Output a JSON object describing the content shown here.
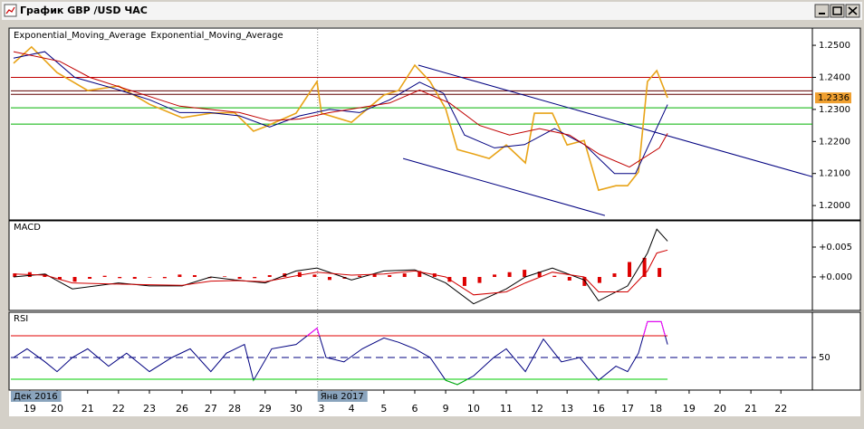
{
  "window_title": "График GBP /USD  ЧАС",
  "x_axis": {
    "xlim": [
      -0.63,
      26.1
    ],
    "xticks": [
      {
        "value": 0,
        "label": "19"
      },
      {
        "value": 0.91,
        "label": "20"
      },
      {
        "value": 1.93,
        "label": "21"
      },
      {
        "value": 2.96,
        "label": "22"
      },
      {
        "value": 3.99,
        "label": "23"
      },
      {
        "value": 5.08,
        "label": "26"
      },
      {
        "value": 6.04,
        "label": "27"
      },
      {
        "value": 6.83,
        "label": "28"
      },
      {
        "value": 7.85,
        "label": "29"
      },
      {
        "value": 8.88,
        "label": "30"
      },
      {
        "value": 9.73,
        "label": "3"
      },
      {
        "value": 10.73,
        "label": "4"
      },
      {
        "value": 11.81,
        "label": "5"
      },
      {
        "value": 12.84,
        "label": "6"
      },
      {
        "value": 13.87,
        "label": "9"
      },
      {
        "value": 14.8,
        "label": "10"
      },
      {
        "value": 15.89,
        "label": "11"
      },
      {
        "value": 16.92,
        "label": "12"
      },
      {
        "value": 17.92,
        "label": "13"
      },
      {
        "value": 18.97,
        "label": "16"
      },
      {
        "value": 19.94,
        "label": "17"
      },
      {
        "value": 20.88,
        "label": "18"
      },
      {
        "value": 21.99,
        "label": "19"
      },
      {
        "value": 23.02,
        "label": "20"
      },
      {
        "value": 24.05,
        "label": "21"
      },
      {
        "value": 25.05,
        "label": "22"
      }
    ],
    "period_labels": [
      {
        "value": -0.63,
        "label": "Дек 2016"
      },
      {
        "value": 9.6,
        "label": "Янв 2017"
      }
    ]
  },
  "chart_data": [
    {
      "type": "line",
      "legend": "top-left",
      "ylim": [
        1.1958,
        1.2551
      ],
      "yticks": [
        {
          "value": 1.2,
          "label": "1.2000"
        },
        {
          "value": 1.21,
          "label": "1.2100"
        },
        {
          "value": 1.22,
          "label": "1.2200"
        },
        {
          "value": 1.23,
          "label": "1.2300"
        },
        {
          "value": 1.24,
          "label": "1.2400"
        },
        {
          "value": 1.25,
          "label": "1.2500"
        }
      ],
      "series": [
        {
          "color": "#e8a317",
          "x": [
            -0.54,
            0.06,
            0.91,
            1.42,
            1.93,
            2.96,
            3.99,
            5.08,
            6.04,
            6.83,
            7.46,
            7.85,
            8.88,
            9.58,
            9.73,
            10.73,
            11.81,
            12.3,
            12.84,
            13.35,
            13.87,
            14.26,
            14.8,
            15.32,
            15.89,
            16.53,
            16.83,
            17.43,
            17.92,
            18.49,
            18.97,
            19.55,
            19.94,
            20.3,
            20.6,
            20.91,
            21.27
          ],
          "values": [
            1.2444,
            1.2495,
            1.2415,
            1.2387,
            1.2359,
            1.2373,
            1.2316,
            1.2274,
            1.2288,
            1.229,
            1.2232,
            1.2246,
            1.2288,
            1.2387,
            1.2288,
            1.226,
            1.2345,
            1.2359,
            1.2438,
            1.2387,
            1.2302,
            1.2175,
            1.2161,
            1.2147,
            1.2189,
            1.2133,
            1.2288,
            1.2288,
            1.2189,
            1.2203,
            1.2048,
            1.2062,
            1.2062,
            1.2105,
            1.2387,
            1.2421,
            1.2336
          ]
        },
        {
          "name": "Exponential_Moving_Average",
          "color": "#000080",
          "x": [
            -0.54,
            0.5,
            1.5,
            3,
            4,
            5,
            6,
            7,
            8,
            9,
            10,
            11,
            12,
            13,
            13.8,
            14.5,
            15.5,
            16.5,
            17.5,
            18.5,
            19.5,
            20.2,
            21,
            21.27
          ],
          "values": [
            1.246,
            1.248,
            1.24,
            1.236,
            1.233,
            1.229,
            1.229,
            1.228,
            1.2245,
            1.228,
            1.23,
            1.229,
            1.233,
            1.2385,
            1.235,
            1.222,
            1.218,
            1.219,
            1.224,
            1.219,
            1.21,
            1.21,
            1.226,
            1.2315
          ]
        },
        {
          "name": "Exponential_Moving_Average",
          "color": "#c00000",
          "x": [
            -0.54,
            1,
            2,
            3,
            4,
            5,
            7,
            8,
            9,
            10,
            12,
            13,
            14,
            15,
            16,
            17,
            18,
            19,
            20,
            21,
            21.27
          ],
          "values": [
            1.248,
            1.245,
            1.24,
            1.237,
            1.234,
            1.231,
            1.229,
            1.2265,
            1.227,
            1.229,
            1.232,
            1.236,
            1.232,
            1.225,
            1.222,
            1.224,
            1.222,
            1.216,
            1.212,
            1.218,
            1.2225
          ]
        }
      ],
      "hlines": [
        {
          "value": 1.24,
          "color": "#c00000"
        },
        {
          "value": 1.2358,
          "color": "#600000"
        },
        {
          "value": 1.2347,
          "color": "#600000"
        },
        {
          "value": 1.2305,
          "color": "#00b000"
        },
        {
          "value": 1.2254,
          "color": "#00b000"
        }
      ],
      "trendlines": [
        {
          "color": "#000080",
          "x": [
            12.96,
            26.1
          ],
          "values": [
            1.2438,
            1.209
          ]
        },
        {
          "color": "#000080",
          "x": [
            12.45,
            19.18
          ],
          "values": [
            1.2147,
            1.1969
          ]
        }
      ],
      "last_price": {
        "value": 1.2336,
        "label": "1.2336",
        "color": "#f0a030"
      }
    },
    {
      "type": "macd",
      "title": "MACD",
      "ylim": [
        -0.00545,
        0.00924
      ],
      "yticks": [
        {
          "value": 0.005,
          "label": "+0.005"
        },
        {
          "value": 0,
          "label": "+0.000"
        }
      ],
      "series": [
        {
          "color": "#000000",
          "x": [
            -0.54,
            0.51,
            1.42,
            2.96,
            3.99,
            5.08,
            6.04,
            6.83,
            7.85,
            8.88,
            9.58,
            10.73,
            11.81,
            12.84,
            13.87,
            14.8,
            15.89,
            16.53,
            17.43,
            18.49,
            18.97,
            19.94,
            20.6,
            20.91,
            21.27
          ],
          "values": [
            0.0,
            0.0005,
            -0.002,
            -0.001,
            -0.0015,
            -0.0015,
            0.0,
            -0.0005,
            -0.001,
            0.001,
            0.0015,
            -0.0005,
            0.001,
            0.0012,
            -0.001,
            -0.0045,
            -0.002,
            0.0,
            0.0015,
            -0.0005,
            -0.004,
            -0.0015,
            0.004,
            0.008,
            0.006
          ]
        },
        {
          "color": "#d00000",
          "x": [
            -0.54,
            0.51,
            1.42,
            2.96,
            3.99,
            5.08,
            6.04,
            6.83,
            7.85,
            8.88,
            9.58,
            10.73,
            11.81,
            12.84,
            13.87,
            14.8,
            15.89,
            16.53,
            17.43,
            18.49,
            18.97,
            19.94,
            20.6,
            20.91,
            21.27
          ],
          "values": [
            0.0005,
            0.0003,
            -0.001,
            -0.0012,
            -0.0013,
            -0.0014,
            -0.0007,
            -0.0006,
            -0.0008,
            0.0002,
            0.0008,
            0.0003,
            0.0005,
            0.001,
            0.0,
            -0.003,
            -0.0025,
            -0.001,
            0.0008,
            0.0,
            -0.0025,
            -0.0025,
            0.001,
            0.004,
            0.0045
          ]
        }
      ],
      "histogram": {
        "color": "#dd0000",
        "x": [
          -0.5,
          0,
          0.5,
          1,
          1.5,
          2,
          2.5,
          3,
          3.5,
          4,
          4.5,
          5,
          5.5,
          6,
          6.5,
          7,
          7.5,
          8,
          8.5,
          9,
          9.5,
          10,
          10.5,
          11,
          11.5,
          12,
          12.5,
          13,
          13.5,
          14,
          14.5,
          15,
          15.5,
          16,
          16.5,
          17,
          17.5,
          18,
          18.5,
          19,
          19.5,
          20,
          20.5,
          21
        ],
        "values": [
          0.0006,
          0.0008,
          0.0005,
          -0.0004,
          -0.0008,
          -0.0003,
          0.0002,
          -0.0002,
          -0.0003,
          -0.0001,
          -0.0002,
          0.0004,
          0.0003,
          -0.0002,
          0.0001,
          -0.0003,
          -0.0002,
          0.0003,
          0.0006,
          0.0008,
          0.0004,
          -0.0005,
          -0.0003,
          0.0002,
          0.0004,
          0.0003,
          0.0006,
          0.001,
          0.0006,
          -0.0008,
          -0.0015,
          -0.001,
          0.0004,
          0.0008,
          0.0012,
          0.0009,
          0.0002,
          -0.0006,
          -0.0015,
          -0.001,
          0.0006,
          0.0025,
          0.0032,
          0.0015
        ]
      }
    },
    {
      "type": "rsi",
      "title": "RSI",
      "ylim": [
        20.8,
        90.8
      ],
      "yticks": [
        50
      ],
      "grid": "dashed",
      "grid_color": "#000080",
      "levels": [
        {
          "value": 70,
          "color": "#e00000"
        },
        {
          "value": 30,
          "color": "#00cc00"
        }
      ],
      "series": [
        {
          "color": "#000080",
          "overbought_color": "#ff00ff",
          "oversold_color": "#00c000",
          "x": [
            -0.54,
            -0.09,
            0.51,
            0.91,
            1.42,
            1.93,
            2.63,
            3.23,
            3.99,
            4.74,
            5.35,
            6.04,
            6.56,
            7.16,
            7.46,
            8.07,
            8.88,
            9.58,
            9.88,
            10.48,
            11.09,
            11.81,
            12.3,
            12.84,
            13.35,
            13.87,
            14.26,
            14.8,
            15.47,
            15.89,
            16.53,
            17.13,
            17.73,
            18.34,
            18.97,
            19.55,
            19.94,
            20.3,
            20.6,
            21.06,
            21.27
          ],
          "values": [
            50,
            58,
            46,
            37,
            50,
            58,
            42,
            54,
            37,
            50,
            58,
            37,
            54,
            62,
            29,
            58,
            62,
            77,
            50,
            46,
            58,
            68,
            64,
            58,
            50,
            29,
            25,
            33,
            50,
            58,
            37,
            67,
            46,
            50,
            29,
            42,
            37,
            54,
            83,
            83,
            62
          ]
        }
      ]
    }
  ]
}
